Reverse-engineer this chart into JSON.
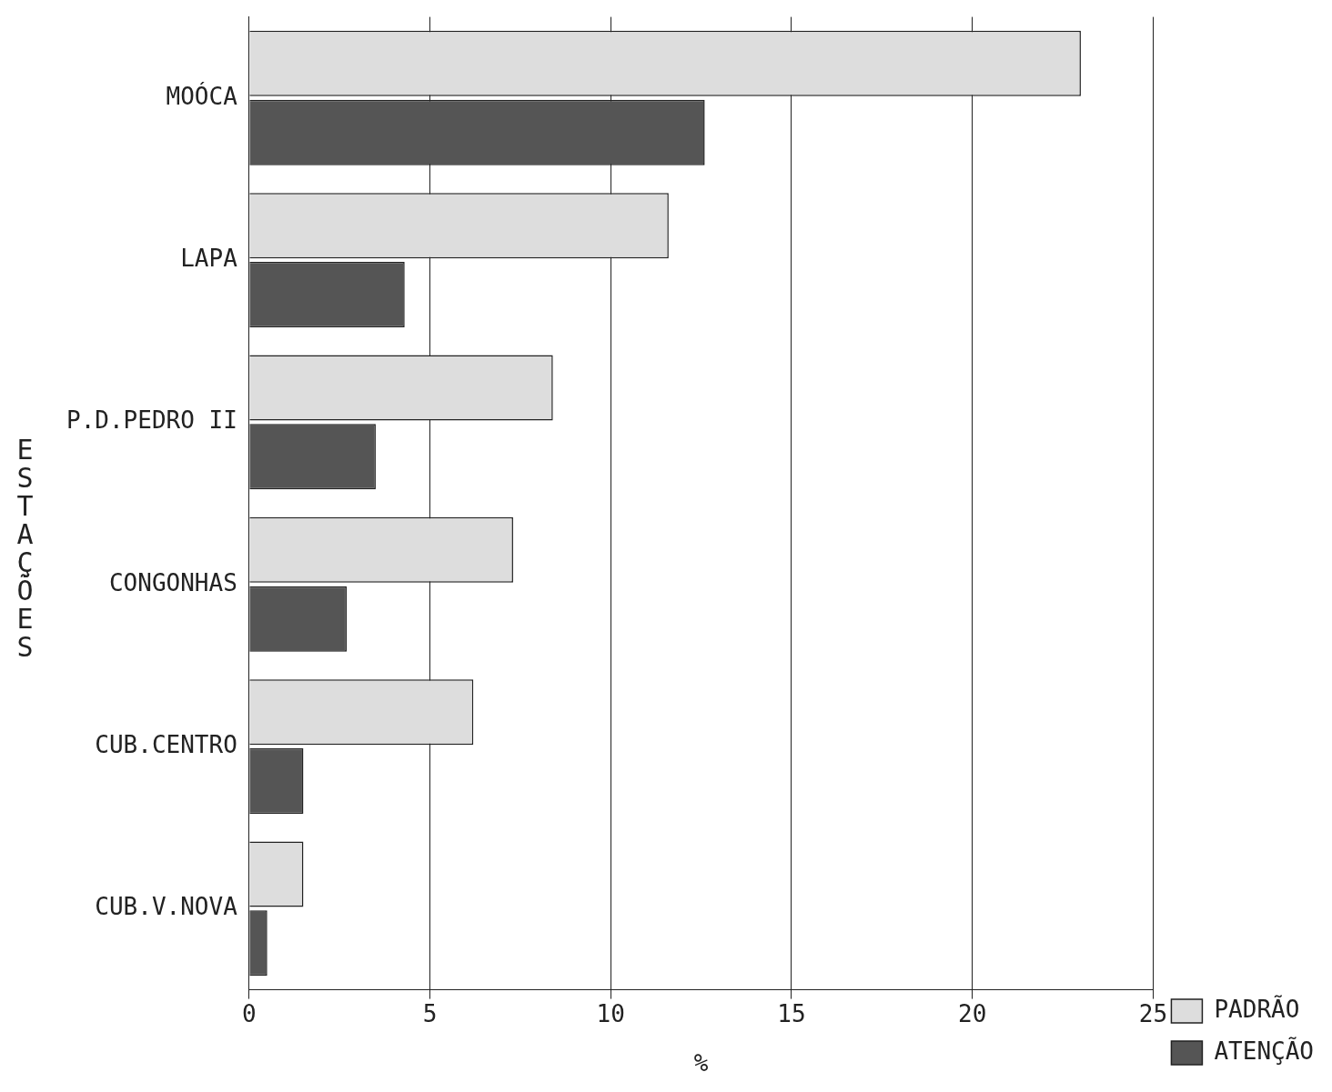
{
  "chart_data": {
    "type": "bar",
    "orientation": "horizontal",
    "xlabel": "%",
    "ylabel": "ESTAÇÕES",
    "categories": [
      "MOÓCA",
      "LAPA",
      "P.D.PEDRO II",
      "CONGONHAS",
      "CUB.CENTRO",
      "CUB.V.NOVA"
    ],
    "series": [
      {
        "name": "PADRÃO",
        "color": "#dddddd",
        "values": [
          23.0,
          11.6,
          8.4,
          7.3,
          6.2,
          1.5
        ]
      },
      {
        "name": "ATENÇÃO",
        "color": "#555555",
        "values": [
          12.6,
          4.3,
          3.5,
          2.7,
          1.5,
          0.5
        ]
      }
    ],
    "xlim": [
      0,
      25
    ],
    "xticks": [
      0,
      5,
      10,
      15,
      20,
      25
    ],
    "grid": "x",
    "legend": "bottom right"
  }
}
